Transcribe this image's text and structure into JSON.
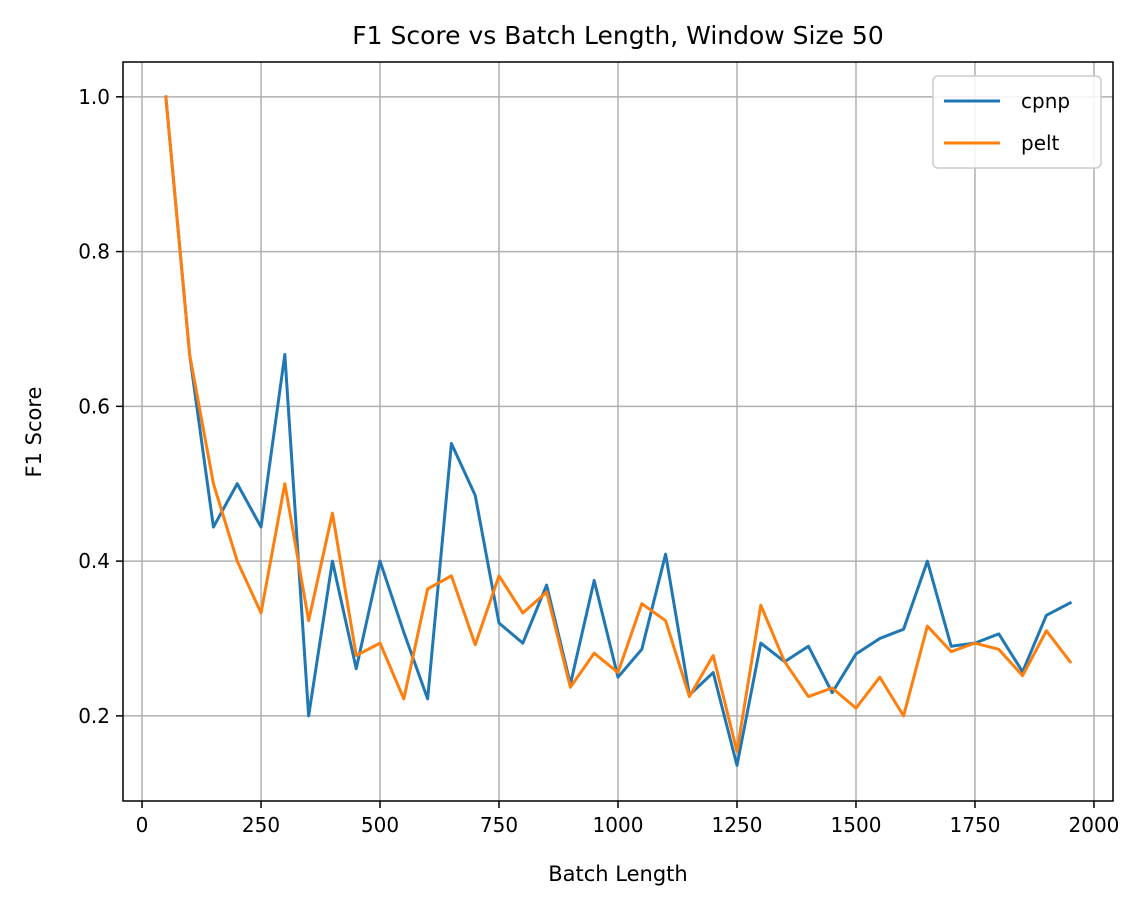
{
  "chart_data": {
    "type": "line",
    "title": "F1 Score vs Batch Length, Window Size 50",
    "xlabel": "Batch Length",
    "ylabel": "F1 Score",
    "xlim": [
      -40,
      2040
    ],
    "ylim": [
      0.09,
      1.045
    ],
    "x_ticks": [
      0,
      250,
      500,
      750,
      1000,
      1250,
      1500,
      1750,
      2000
    ],
    "x_tick_labels": [
      "0",
      "250",
      "500",
      "750",
      "1000",
      "1250",
      "1500",
      "1750",
      "2000"
    ],
    "y_ticks": [
      0.2,
      0.4,
      0.6,
      0.8,
      1.0
    ],
    "y_tick_labels": [
      "0.2",
      "0.4",
      "0.6",
      "0.8",
      "1.0"
    ],
    "grid": true,
    "legend_position": "top-right",
    "x": [
      50,
      100,
      150,
      200,
      250,
      300,
      350,
      400,
      450,
      500,
      550,
      600,
      650,
      700,
      750,
      800,
      850,
      900,
      950,
      1000,
      1050,
      1100,
      1150,
      1200,
      1250,
      1300,
      1350,
      1400,
      1450,
      1500,
      1550,
      1600,
      1650,
      1700,
      1750,
      1800,
      1850,
      1900,
      1950
    ],
    "series": [
      {
        "name": "cpnp",
        "color": "#1f77b4",
        "values": [
          1.0,
          0.667,
          0.444,
          0.5,
          0.444,
          0.667,
          0.2,
          0.4,
          0.261,
          0.4,
          0.308,
          0.222,
          0.552,
          0.485,
          0.32,
          0.294,
          0.369,
          0.241,
          0.375,
          0.25,
          0.286,
          0.409,
          0.227,
          0.256,
          0.136,
          0.294,
          0.27,
          0.29,
          0.23,
          0.28,
          0.3,
          0.312,
          0.4,
          0.29,
          0.294,
          0.306,
          0.257,
          0.33,
          0.346
        ]
      },
      {
        "name": "pelt",
        "color": "#ff7f0e",
        "values": [
          1.0,
          0.667,
          0.5,
          0.4,
          0.333,
          0.5,
          0.323,
          0.462,
          0.278,
          0.294,
          0.222,
          0.364,
          0.381,
          0.292,
          0.381,
          0.333,
          0.36,
          0.237,
          0.281,
          0.256,
          0.345,
          0.323,
          0.225,
          0.278,
          0.154,
          0.343,
          0.27,
          0.225,
          0.236,
          0.21,
          0.25,
          0.2,
          0.316,
          0.283,
          0.294,
          0.286,
          0.252,
          0.31,
          0.27
        ]
      }
    ]
  }
}
